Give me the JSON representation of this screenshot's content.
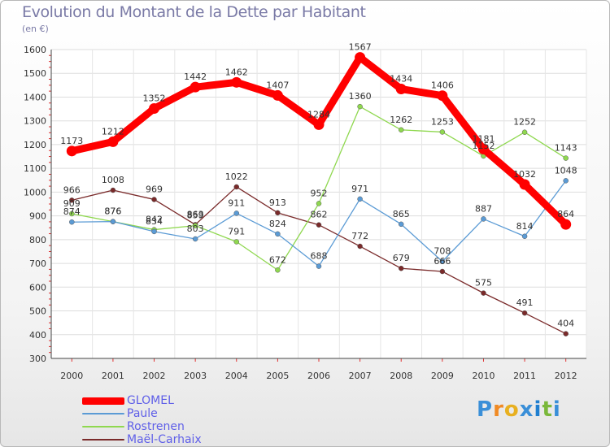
{
  "title": "Evolution du Montant de la Dette par Habitant",
  "subtitle": "(en €)",
  "logo": {
    "letters": [
      "P",
      "r",
      "o",
      "x",
      "i",
      "t",
      "i"
    ],
    "colors": [
      "#3a8fd8",
      "#f08a24",
      "#e8b020",
      "#3a8fd8",
      "#1f7fd0",
      "#7ab83a",
      "#3a8fd8"
    ]
  },
  "chart_data": {
    "type": "line",
    "x": [
      "2000",
      "2001",
      "2002",
      "2003",
      "2004",
      "2005",
      "2006",
      "2007",
      "2008",
      "2009",
      "2010",
      "2011",
      "2012"
    ],
    "ylim": [
      300,
      1600
    ],
    "yticks": [
      300,
      400,
      500,
      600,
      700,
      800,
      900,
      1000,
      1100,
      1200,
      1300,
      1400,
      1500,
      1600
    ],
    "grid": true,
    "legend_position": "bottom-left",
    "series": [
      {
        "name": "GLOMEL",
        "color": "#ff0000",
        "values": [
          1173,
          1212,
          1352,
          1442,
          1462,
          1407,
          1284,
          1567,
          1434,
          1406,
          1181,
          1032,
          864
        ]
      },
      {
        "name": "Paule",
        "color": "#5b9bd5",
        "values": [
          874,
          876,
          834,
          803,
          911,
          824,
          688,
          971,
          865,
          708,
          887,
          814,
          1048
        ]
      },
      {
        "name": "Rostrenen",
        "color": "#8fd84f",
        "values": [
          909,
          876,
          842,
          859,
          791,
          672,
          952,
          1360,
          1262,
          1253,
          1152,
          1252,
          1143
        ]
      },
      {
        "name": "Maël-Carhaix",
        "color": "#7a2a2a",
        "values": [
          966,
          1008,
          969,
          863,
          1022,
          913,
          862,
          772,
          679,
          666,
          575,
          491,
          404
        ]
      }
    ]
  }
}
